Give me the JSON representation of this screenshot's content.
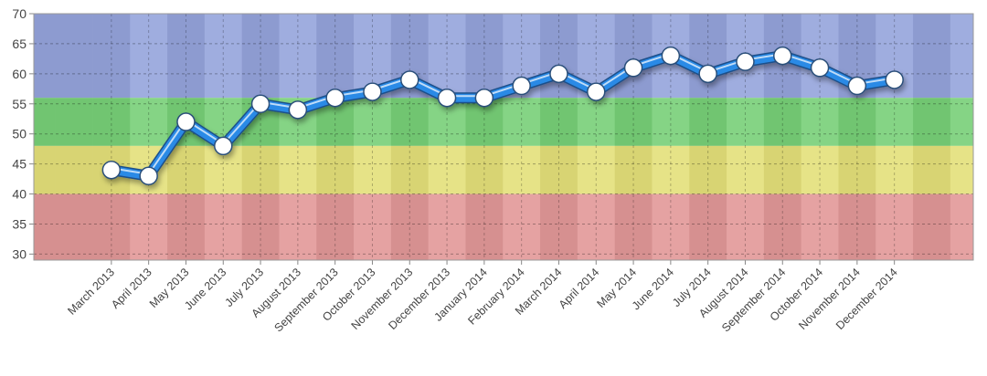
{
  "chart_data": {
    "type": "line",
    "title": "",
    "xlabel": "",
    "ylabel": "",
    "ylim": [
      29,
      70
    ],
    "yticks": [
      30,
      35,
      40,
      45,
      50,
      55,
      60,
      65,
      70
    ],
    "grid": true,
    "categories": [
      "March 2013",
      "April 2013",
      "May 2013",
      "June 2013",
      "July 2013",
      "August 2013",
      "September 2013",
      "October 2013",
      "November 2013",
      "December 2013",
      "January 2014",
      "February 2014",
      "March 2014",
      "April 2014",
      "May 2014",
      "June 2014",
      "July 2014",
      "August 2014",
      "September 2014",
      "October 2014",
      "November 2014",
      "December 2014"
    ],
    "values": [
      44,
      43,
      52,
      48,
      55,
      54,
      56,
      57,
      59,
      56,
      56,
      58,
      60,
      57,
      61,
      63,
      60,
      62,
      63,
      61,
      58,
      59
    ],
    "bands": [
      {
        "from": 56,
        "to": 70,
        "color": "#95a4dc"
      },
      {
        "from": 48,
        "to": 56,
        "color": "#78d078"
      },
      {
        "from": 40,
        "to": 48,
        "color": "#e4e07a"
      },
      {
        "from": 29,
        "to": 40,
        "color": "#e29898"
      }
    ],
    "line_color": "#2a8ae6",
    "marker_color": "#ffffff"
  }
}
